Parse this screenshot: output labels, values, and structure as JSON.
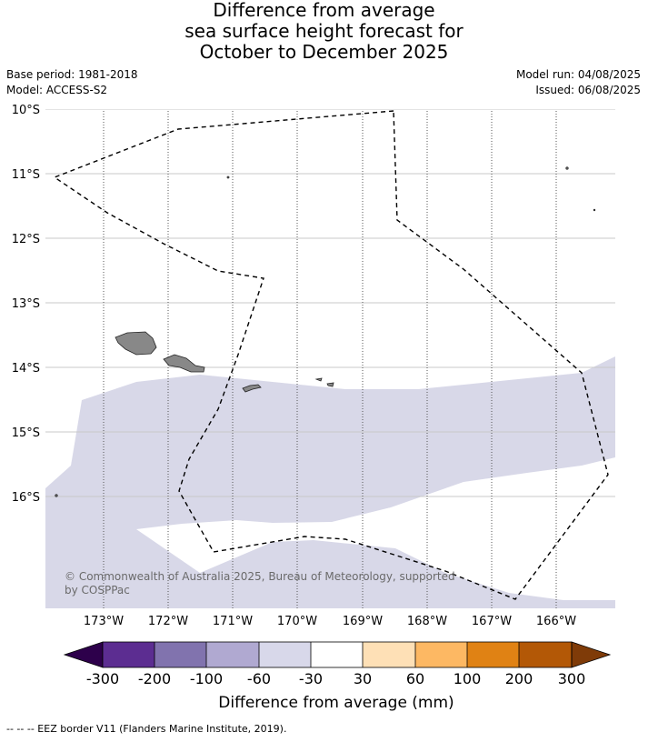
{
  "title_lines": [
    "Difference from average",
    "sea surface height forecast for",
    "October to December 2025"
  ],
  "meta": {
    "base_period": "Base period: 1981-2018",
    "model": "Model: ACCESS-S2",
    "model_run": "Model run: 04/08/2025",
    "issued": "Issued: 06/08/2025"
  },
  "map": {
    "lon_labels": [
      "173°W",
      "172°W",
      "171°W",
      "170°W",
      "169°W",
      "168°W",
      "167°W",
      "166°W"
    ],
    "lat_labels": [
      "10°S",
      "11°S",
      "12°S",
      "13°S",
      "14°S",
      "15°S",
      "16°S"
    ],
    "copyright": [
      "© Commonwealth of Australia 2025, Bureau of Meteorology, supported",
      "by COSPPac"
    ],
    "colors": {
      "anomaly_fill": "#d8d8e8",
      "land": "#888888",
      "grid": "#c8c8c8"
    }
  },
  "colorbar": {
    "ticks": [
      "-300",
      "-200",
      "-100",
      "-60",
      "-30",
      "30",
      "60",
      "100",
      "200",
      "300"
    ],
    "colors": [
      "#2d004b",
      "#5c2d91",
      "#8173ae",
      "#b0a9d1",
      "#d8d8ea",
      "#ffffff",
      "#fee0b6",
      "#fdb863",
      "#e08214",
      "#b35806",
      "#7f3b08"
    ],
    "label": "Difference from average (mm)"
  },
  "footer": "--  --  -- EEZ border V11 (Flanders Marine Institute, 2019)."
}
